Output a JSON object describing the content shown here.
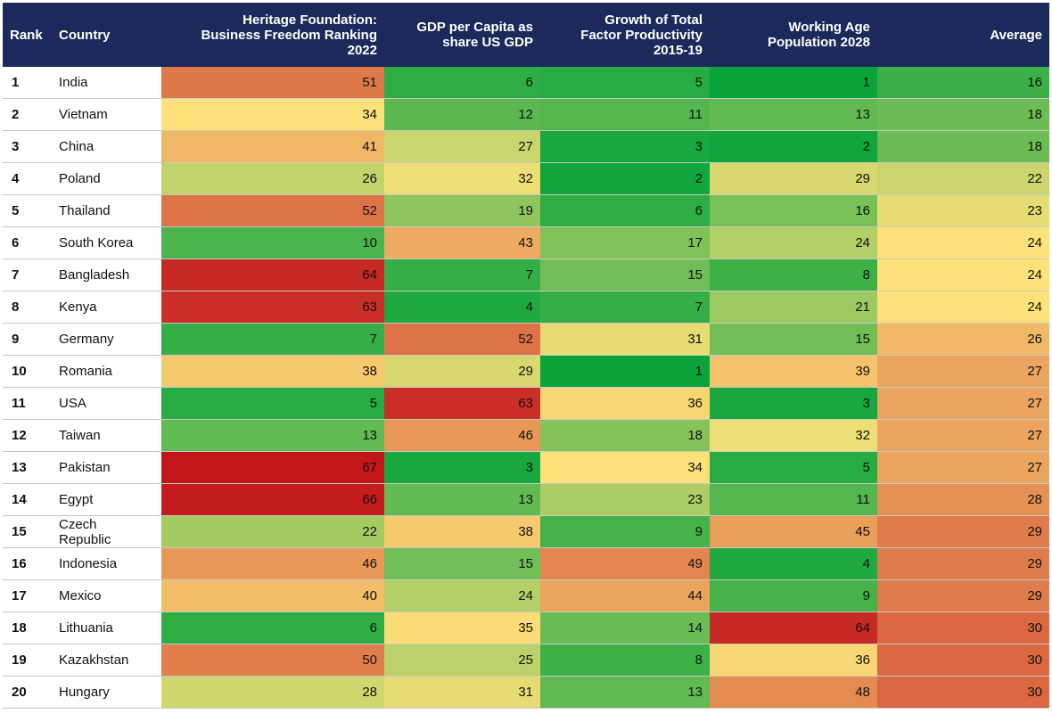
{
  "chart_data": {
    "type": "table",
    "columns": [
      "Rank",
      "Country",
      "Heritage Foundation: Business Freedom Ranking 2022",
      "GDP per Capita as share US GDP",
      "Growth of Total Factor Productivity 2015-19",
      "Working Age Population 2028",
      "Average"
    ],
    "header_lines": [
      [
        "Rank"
      ],
      [
        "Country"
      ],
      [
        "Heritage Foundation:",
        "Business Freedom Ranking",
        "2022"
      ],
      [
        "GDP per Capita as",
        "share US GDP"
      ],
      [
        "Growth of Total",
        "Factor Productivity",
        "2015-19"
      ],
      [
        "Working Age",
        "Population 2028"
      ],
      [
        "Average"
      ]
    ],
    "rows": [
      {
        "rank": "1",
        "country": "India",
        "values": [
          51,
          6,
          5,
          1,
          16
        ]
      },
      {
        "rank": "2",
        "country": "Vietnam",
        "values": [
          34,
          12,
          11,
          13,
          18
        ]
      },
      {
        "rank": "3",
        "country": "China",
        "values": [
          41,
          27,
          3,
          2,
          18
        ]
      },
      {
        "rank": "4",
        "country": "Poland",
        "values": [
          26,
          32,
          2,
          29,
          22
        ]
      },
      {
        "rank": "5",
        "country": "Thailand",
        "values": [
          52,
          19,
          6,
          16,
          23
        ]
      },
      {
        "rank": "6",
        "country": "South Korea",
        "values": [
          10,
          43,
          17,
          24,
          24
        ]
      },
      {
        "rank": "7",
        "country": "Bangladesh",
        "values": [
          64,
          7,
          15,
          8,
          24
        ]
      },
      {
        "rank": "8",
        "country": "Kenya",
        "values": [
          63,
          4,
          7,
          21,
          24
        ]
      },
      {
        "rank": "9",
        "country": "Germany",
        "values": [
          7,
          52,
          31,
          15,
          26
        ]
      },
      {
        "rank": "10",
        "country": "Romania",
        "values": [
          38,
          29,
          1,
          39,
          27
        ]
      },
      {
        "rank": "11",
        "country": "USA",
        "values": [
          5,
          63,
          36,
          3,
          27
        ]
      },
      {
        "rank": "12",
        "country": "Taiwan",
        "values": [
          13,
          46,
          18,
          32,
          27
        ]
      },
      {
        "rank": "13",
        "country": "Pakistan",
        "values": [
          67,
          3,
          34,
          5,
          27
        ]
      },
      {
        "rank": "14",
        "country": "Egypt",
        "values": [
          66,
          13,
          23,
          11,
          28
        ]
      },
      {
        "rank": "15",
        "country": "Czech Republic",
        "country_lines": [
          "Czech",
          "Republic"
        ],
        "values": [
          22,
          38,
          9,
          45,
          29
        ]
      },
      {
        "rank": "16",
        "country": "Indonesia",
        "values": [
          46,
          15,
          49,
          4,
          29
        ]
      },
      {
        "rank": "17",
        "country": "Mexico",
        "values": [
          40,
          24,
          44,
          9,
          29
        ]
      },
      {
        "rank": "18",
        "country": "Lithuania",
        "values": [
          6,
          35,
          14,
          64,
          30
        ]
      },
      {
        "rank": "19",
        "country": "Kazakhstan",
        "values": [
          50,
          25,
          8,
          36,
          30
        ]
      },
      {
        "rank": "20",
        "country": "Hungary",
        "values": [
          28,
          31,
          13,
          48,
          30
        ]
      }
    ],
    "color_scale": {
      "low_color": "#0aa33b",
      "mid_color": "#fde27a",
      "high_color": "#c2161b",
      "note_direction": "low values green, high values red"
    }
  }
}
